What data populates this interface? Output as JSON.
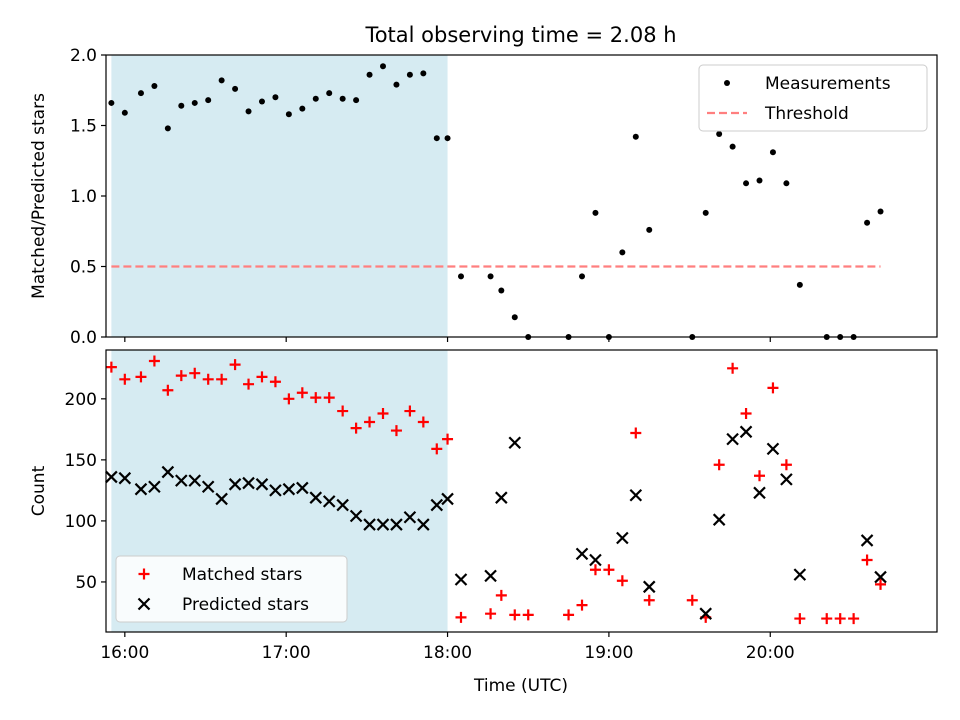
{
  "chart_data": {
    "title": "Total observing time = 2.08 h",
    "xlabel": "Time (UTC)",
    "x_ticks": [
      "16:00",
      "17:00",
      "18:00",
      "19:00",
      "20:00"
    ],
    "xlim": [
      "15:53",
      "21:02"
    ],
    "shaded_region": {
      "from": "15:55",
      "to": "18:00",
      "color": "#add8e6"
    },
    "panels": [
      {
        "type": "scatter",
        "ylabel": "Matched/Predicted stars",
        "ylim": [
          0,
          2.0
        ],
        "y_ticks": [
          0.0,
          0.5,
          1.0,
          1.5,
          2.0
        ],
        "legend_position": "upper right",
        "series": [
          {
            "name": "Measurements",
            "color": "#000000",
            "marker": "dot",
            "points": [
              [
                "15:55",
                1.66
              ],
              [
                "16:00",
                1.59
              ],
              [
                "16:06",
                1.73
              ],
              [
                "16:11",
                1.78
              ],
              [
                "16:16",
                1.48
              ],
              [
                "16:21",
                1.64
              ],
              [
                "16:26",
                1.66
              ],
              [
                "16:31",
                1.68
              ],
              [
                "16:36",
                1.82
              ],
              [
                "16:41",
                1.76
              ],
              [
                "16:46",
                1.6
              ],
              [
                "16:51",
                1.67
              ],
              [
                "16:56",
                1.7
              ],
              [
                "17:01",
                1.58
              ],
              [
                "17:06",
                1.62
              ],
              [
                "17:11",
                1.69
              ],
              [
                "17:16",
                1.73
              ],
              [
                "17:21",
                1.69
              ],
              [
                "17:26",
                1.68
              ],
              [
                "17:31",
                1.86
              ],
              [
                "17:36",
                1.92
              ],
              [
                "17:41",
                1.79
              ],
              [
                "17:46",
                1.86
              ],
              [
                "17:51",
                1.87
              ],
              [
                "17:56",
                1.41
              ],
              [
                "18:00",
                1.41
              ],
              [
                "18:05",
                0.43
              ],
              [
                "18:16",
                0.43
              ],
              [
                "18:20",
                0.33
              ],
              [
                "18:25",
                0.14
              ],
              [
                "18:30",
                0.0
              ],
              [
                "18:45",
                0.0
              ],
              [
                "18:50",
                0.43
              ],
              [
                "18:55",
                0.88
              ],
              [
                "19:00",
                0.0
              ],
              [
                "19:05",
                0.6
              ],
              [
                "19:10",
                1.42
              ],
              [
                "19:15",
                0.76
              ],
              [
                "19:31",
                0.0
              ],
              [
                "19:36",
                0.88
              ],
              [
                "19:41",
                1.44
              ],
              [
                "19:46",
                1.35
              ],
              [
                "19:51",
                1.09
              ],
              [
                "19:56",
                1.11
              ],
              [
                "20:01",
                1.31
              ],
              [
                "20:06",
                1.09
              ],
              [
                "20:11",
                0.37
              ],
              [
                "20:21",
                0.0
              ],
              [
                "20:26",
                0.0
              ],
              [
                "20:31",
                0.0
              ],
              [
                "20:36",
                0.81
              ],
              [
                "20:41",
                0.89
              ]
            ]
          },
          {
            "name": "Threshold",
            "color": "#ff7f7f",
            "style": "dashed",
            "points": [
              [
                "15:55",
                0.5
              ],
              [
                "20:41",
                0.5
              ]
            ]
          }
        ]
      },
      {
        "type": "scatter",
        "ylabel": "Count",
        "ylim": [
          9,
          240
        ],
        "y_ticks": [
          50,
          100,
          150,
          200
        ],
        "legend_position": "lower left",
        "series": [
          {
            "name": "Matched stars",
            "color": "#ff0000",
            "marker": "plus",
            "points": [
              [
                "15:55",
                226
              ],
              [
                "16:00",
                216
              ],
              [
                "16:06",
                218
              ],
              [
                "16:11",
                231
              ],
              [
                "16:16",
                207
              ],
              [
                "16:21",
                219
              ],
              [
                "16:26",
                221
              ],
              [
                "16:31",
                216
              ],
              [
                "16:36",
                216
              ],
              [
                "16:41",
                228
              ],
              [
                "16:46",
                212
              ],
              [
                "16:51",
                218
              ],
              [
                "16:56",
                214
              ],
              [
                "17:01",
                200
              ],
              [
                "17:06",
                205
              ],
              [
                "17:11",
                201
              ],
              [
                "17:16",
                201
              ],
              [
                "17:21",
                190
              ],
              [
                "17:26",
                176
              ],
              [
                "17:31",
                181
              ],
              [
                "17:36",
                188
              ],
              [
                "17:41",
                174
              ],
              [
                "17:46",
                190
              ],
              [
                "17:51",
                181
              ],
              [
                "17:56",
                159
              ],
              [
                "18:00",
                167
              ],
              [
                "18:05",
                21
              ],
              [
                "18:16",
                24
              ],
              [
                "18:20",
                39
              ],
              [
                "18:25",
                23
              ],
              [
                "18:30",
                23
              ],
              [
                "18:45",
                23
              ],
              [
                "18:50",
                31
              ],
              [
                "18:55",
                60
              ],
              [
                "19:00",
                60
              ],
              [
                "19:05",
                51
              ],
              [
                "19:10",
                172
              ],
              [
                "19:15",
                35
              ],
              [
                "19:31",
                35
              ],
              [
                "19:36",
                21
              ],
              [
                "19:41",
                146
              ],
              [
                "19:46",
                225
              ],
              [
                "19:51",
                188
              ],
              [
                "19:56",
                137
              ],
              [
                "20:01",
                209
              ],
              [
                "20:06",
                146
              ],
              [
                "20:11",
                20
              ],
              [
                "20:21",
                20
              ],
              [
                "20:26",
                20
              ],
              [
                "20:31",
                20
              ],
              [
                "20:36",
                68
              ],
              [
                "20:41",
                48
              ]
            ]
          },
          {
            "name": "Predicted stars",
            "color": "#000000",
            "marker": "x",
            "points": [
              [
                "15:55",
                136
              ],
              [
                "16:00",
                135
              ],
              [
                "16:06",
                126
              ],
              [
                "16:11",
                128
              ],
              [
                "16:16",
                140
              ],
              [
                "16:21",
                133
              ],
              [
                "16:26",
                133
              ],
              [
                "16:31",
                128
              ],
              [
                "16:36",
                118
              ],
              [
                "16:41",
                130
              ],
              [
                "16:46",
                131
              ],
              [
                "16:51",
                130
              ],
              [
                "16:56",
                125
              ],
              [
                "17:01",
                126
              ],
              [
                "17:06",
                127
              ],
              [
                "17:11",
                119
              ],
              [
                "17:16",
                116
              ],
              [
                "17:21",
                113
              ],
              [
                "17:26",
                104
              ],
              [
                "17:31",
                97
              ],
              [
                "17:36",
                97
              ],
              [
                "17:41",
                97
              ],
              [
                "17:46",
                103
              ],
              [
                "17:51",
                97
              ],
              [
                "17:56",
                113
              ],
              [
                "18:00",
                118
              ],
              [
                "18:05",
                52
              ],
              [
                "18:16",
                55
              ],
              [
                "18:20",
                119
              ],
              [
                "18:25",
                164
              ],
              [
                "18:50",
                73
              ],
              [
                "18:55",
                68
              ],
              [
                "19:05",
                86
              ],
              [
                "19:10",
                121
              ],
              [
                "19:15",
                46
              ],
              [
                "19:36",
                24
              ],
              [
                "19:41",
                101
              ],
              [
                "19:46",
                167
              ],
              [
                "19:51",
                173
              ],
              [
                "19:56",
                123
              ],
              [
                "20:01",
                159
              ],
              [
                "20:06",
                134
              ],
              [
                "20:11",
                56
              ],
              [
                "20:36",
                84
              ],
              [
                "20:41",
                54
              ]
            ]
          }
        ]
      }
    ]
  }
}
